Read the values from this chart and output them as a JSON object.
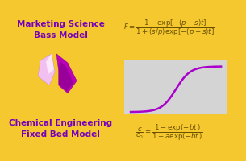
{
  "bg_color": "#F5C830",
  "border_color": "#C8A020",
  "title1": "Marketing Science\nBass Model",
  "title2": "Chemical Engineering\nFixed Bed Model",
  "title_color": "#7700BB",
  "formula_top_text": "$F = \\dfrac{1-\\exp[-(p+s)t]}{1+(s/p)\\exp[-(p+s)t]}$",
  "formula_bottom_text": "$\\dfrac{c}{c_0} = \\dfrac{1-\\exp(-bt\\,)}{1+a\\exp(-bt\\,)}$",
  "formula_color": "#6B5000",
  "curve_color": "#AA00CC",
  "plot_bg": "#D4D4D4",
  "logo_dark": "#CC00CC",
  "logo_light": "#F0B0E0",
  "logo_mid": "#E060E0"
}
